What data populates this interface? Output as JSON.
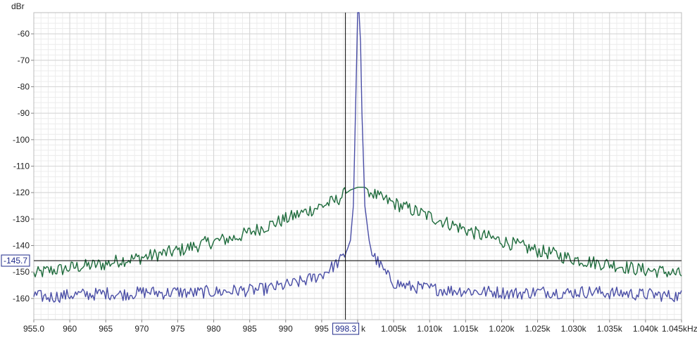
{
  "chart_data": {
    "type": "line",
    "title": "",
    "ylabel": "dBr",
    "xlabel": "",
    "x_unit_suffix": "kHz",
    "xlim": [
      955.0,
      1045.0
    ],
    "ylim": [
      -168,
      -52
    ],
    "grid": true,
    "x_ticks": [
      {
        "v": 955,
        "label": "955.0"
      },
      {
        "v": 960,
        "label": "960"
      },
      {
        "v": 965,
        "label": "965"
      },
      {
        "v": 970,
        "label": "970"
      },
      {
        "v": 975,
        "label": "975"
      },
      {
        "v": 980,
        "label": "980"
      },
      {
        "v": 985,
        "label": "985"
      },
      {
        "v": 990,
        "label": "990"
      },
      {
        "v": 995,
        "label": "995"
      },
      {
        "v": 1000,
        "label": "k"
      },
      {
        "v": 1005,
        "label": "1.005k"
      },
      {
        "v": 1010,
        "label": "1.010k"
      },
      {
        "v": 1015,
        "label": "1.015k"
      },
      {
        "v": 1020,
        "label": "1.020k"
      },
      {
        "v": 1025,
        "label": "1.025k"
      },
      {
        "v": 1030,
        "label": "1.030k"
      },
      {
        "v": 1035,
        "label": "1.035k"
      },
      {
        "v": 1040,
        "label": "1.040k"
      },
      {
        "v": 1045,
        "label": "1.045kHz"
      }
    ],
    "y_ticks": [
      {
        "v": -60,
        "label": "-60"
      },
      {
        "v": -70,
        "label": "-70"
      },
      {
        "v": -80,
        "label": "-80"
      },
      {
        "v": -90,
        "label": "-90"
      },
      {
        "v": -100,
        "label": "-100"
      },
      {
        "v": -110,
        "label": "-110"
      },
      {
        "v": -120,
        "label": "-120"
      },
      {
        "v": -130,
        "label": "-130"
      },
      {
        "v": -140,
        "label": "-140"
      },
      {
        "v": -150,
        "label": "-150"
      },
      {
        "v": -160,
        "label": "-160"
      }
    ],
    "cursor": {
      "x": 998.3,
      "y": -145.7,
      "x_label": "998.3",
      "y_label": "-145.7"
    },
    "series": [
      {
        "color": "#1e6b3c",
        "x": [
          955,
          957,
          959,
          961,
          963,
          965,
          967,
          969,
          971,
          973,
          975,
          977,
          979,
          981,
          983,
          985,
          987,
          989,
          991,
          993,
          995,
          997,
          998,
          999,
          1000,
          1001,
          1002,
          1003,
          1005,
          1007,
          1009,
          1011,
          1013,
          1015,
          1017,
          1019,
          1021,
          1023,
          1025,
          1027,
          1029,
          1031,
          1033,
          1035,
          1037,
          1039,
          1041,
          1043,
          1045
        ],
        "y": [
          -151,
          -149.5,
          -149,
          -148,
          -147.5,
          -147,
          -145.5,
          -145,
          -144,
          -143,
          -142,
          -140.5,
          -139,
          -138,
          -137,
          -135,
          -133,
          -131,
          -129,
          -127,
          -125,
          -123,
          -121,
          -119,
          -118,
          -118,
          -120,
          -122,
          -124,
          -126,
          -128,
          -130,
          -132,
          -134,
          -136,
          -137.5,
          -139,
          -140.5,
          -142,
          -143,
          -144.5,
          -145.5,
          -146.5,
          -147,
          -148,
          -149,
          -149.5,
          -150,
          -151
        ]
      },
      {
        "color": "#4a4ea6",
        "x": [
          955,
          957,
          959,
          961,
          963,
          965,
          967,
          969,
          971,
          973,
          975,
          977,
          979,
          981,
          983,
          985,
          987,
          989,
          991,
          993,
          995,
          996,
          997,
          998,
          998.5,
          999,
          999.4,
          999.7,
          1000,
          1000.3,
          1000.6,
          1001,
          1001.5,
          1002,
          1003,
          1004,
          1005,
          1007,
          1009,
          1011,
          1013,
          1015,
          1017,
          1019,
          1021,
          1023,
          1025,
          1027,
          1029,
          1031,
          1033,
          1035,
          1037,
          1039,
          1041,
          1043,
          1045
        ],
        "y": [
          -159,
          -159.5,
          -159,
          -158.5,
          -158.5,
          -158,
          -158.5,
          -158,
          -157.5,
          -158,
          -157.5,
          -158,
          -157.5,
          -157.5,
          -157,
          -157,
          -156.5,
          -155.5,
          -154.5,
          -153,
          -151,
          -149,
          -147,
          -144.5,
          -142,
          -138,
          -125,
          -90,
          -50,
          -50,
          -90,
          -125,
          -136,
          -143,
          -147,
          -151,
          -154,
          -155.5,
          -156,
          -156.5,
          -157,
          -157,
          -157.5,
          -157.5,
          -158,
          -158,
          -157.5,
          -157.5,
          -158,
          -157.5,
          -157.5,
          -158,
          -158,
          -158.5,
          -158.5,
          -159,
          -159
        ]
      }
    ]
  }
}
